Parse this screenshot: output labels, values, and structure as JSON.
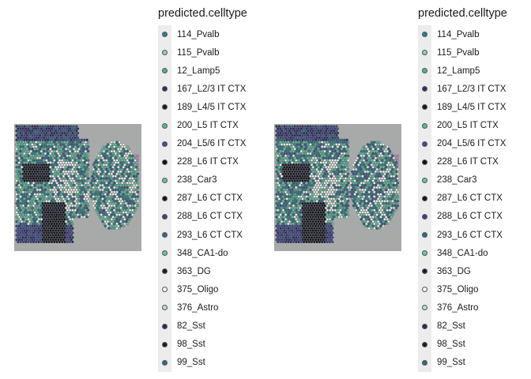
{
  "panels": [
    {
      "legend": {
        "title": "predicted.celltype"
      }
    },
    {
      "legend": {
        "title": "predicted.celltype"
      }
    }
  ],
  "chart_data": [
    {
      "type": "scatter",
      "title": "",
      "xlabel": "",
      "ylabel": "",
      "grid": false,
      "legend_position": "right",
      "legend_title": "predicted.celltype",
      "categories": [
        "114_Pvalb",
        "115_Pvalb",
        "12_Lamp5",
        "167_L2/3 IT CTX",
        "189_L4/5 IT CTX",
        "200_L5 IT CTX",
        "204_L5/6 IT CTX",
        "228_L6 IT CTX",
        "238_Car3",
        "287_L6 CT CTX",
        "288_L6 CT CTX",
        "293_L6 CT CTX",
        "348_CA1-do",
        "363_DG",
        "375_Oligo",
        "376_Astro",
        "82_Sst",
        "98_Sst",
        "99_Sst"
      ],
      "colors": [
        "#2e7f85",
        "#8fcfb6",
        "#4fae9a",
        "#2f2c6a",
        "#1a1a2a",
        "#5ab893",
        "#3b4f8a",
        "#121218",
        "#6cc0a2",
        "#15151f",
        "#3c3f86",
        "#2d6b86",
        "#66c5a5",
        "#1b1b27",
        "#f2f5f3",
        "#b9dfc8",
        "#302860",
        "#1c1c2c",
        "#2e6a82"
      ]
    },
    {
      "type": "scatter",
      "title": "",
      "xlabel": "",
      "ylabel": "",
      "grid": false,
      "legend_position": "right",
      "legend_title": "predicted.celltype",
      "categories": [
        "114_Pvalb",
        "115_Pvalb",
        "12_Lamp5",
        "167_L2/3 IT CTX",
        "189_L4/5 IT CTX",
        "200_L5 IT CTX",
        "204_L5/6 IT CTX",
        "228_L6 IT CTX",
        "238_Car3",
        "287_L6 CT CTX",
        "288_L6 CT CTX",
        "293_L6 CT CTX",
        "348_CA1-do",
        "363_DG",
        "375_Oligo",
        "376_Astro",
        "82_Sst",
        "98_Sst",
        "99_Sst"
      ],
      "colors": [
        "#2e7f85",
        "#8fcfb6",
        "#4fae9a",
        "#2f2c6a",
        "#1a1a2a",
        "#5ab893",
        "#3b4f8a",
        "#121218",
        "#6cc0a2",
        "#15151f",
        "#3c3f86",
        "#2d6b86",
        "#66c5a5",
        "#1b1b27",
        "#f2f5f3",
        "#b9dfc8",
        "#302860",
        "#1c1c2c",
        "#2e6a82"
      ]
    }
  ]
}
